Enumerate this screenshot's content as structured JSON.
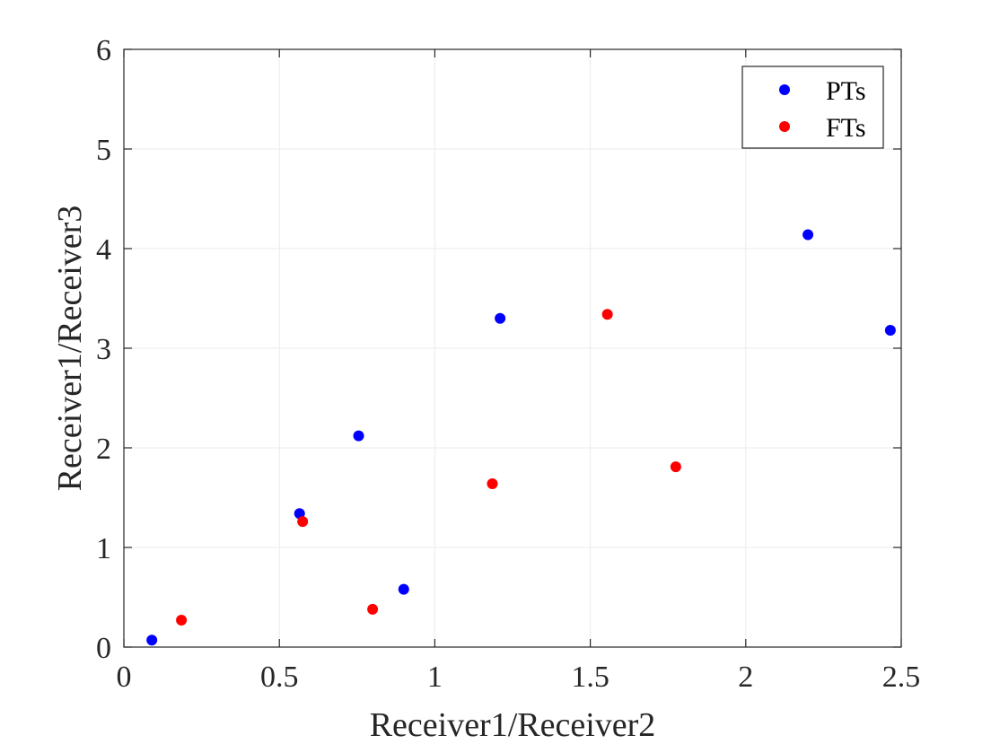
{
  "chart_data": {
    "type": "scatter",
    "title": "",
    "xlabel": "Receiver1/Receiver2",
    "ylabel": "Receiver1/Receiver3",
    "xlim": [
      0,
      2.5
    ],
    "ylim": [
      0,
      6
    ],
    "xticks": [
      0,
      0.5,
      1,
      1.5,
      2,
      2.5
    ],
    "xtick_labels": [
      "0",
      "0.5",
      "1",
      "1.5",
      "2",
      "2.5"
    ],
    "yticks": [
      0,
      1,
      2,
      3,
      4,
      5,
      6
    ],
    "ytick_labels": [
      "0",
      "1",
      "2",
      "3",
      "4",
      "5",
      "6"
    ],
    "grid": true,
    "legend_position": "top-right",
    "series": [
      {
        "name": "PTs",
        "color": "#0000ff",
        "points": [
          {
            "x": 0.09,
            "y": 0.07
          },
          {
            "x": 0.565,
            "y": 1.34
          },
          {
            "x": 0.755,
            "y": 2.12
          },
          {
            "x": 0.9,
            "y": 0.58
          },
          {
            "x": 1.21,
            "y": 3.3
          },
          {
            "x": 2.2,
            "y": 4.14
          },
          {
            "x": 2.465,
            "y": 3.18
          }
        ]
      },
      {
        "name": "FTs",
        "color": "#ff0000",
        "points": [
          {
            "x": 0.185,
            "y": 0.27
          },
          {
            "x": 0.575,
            "y": 1.26
          },
          {
            "x": 0.8,
            "y": 0.38
          },
          {
            "x": 1.185,
            "y": 1.64
          },
          {
            "x": 1.555,
            "y": 3.34
          },
          {
            "x": 1.775,
            "y": 1.81
          }
        ]
      }
    ]
  }
}
